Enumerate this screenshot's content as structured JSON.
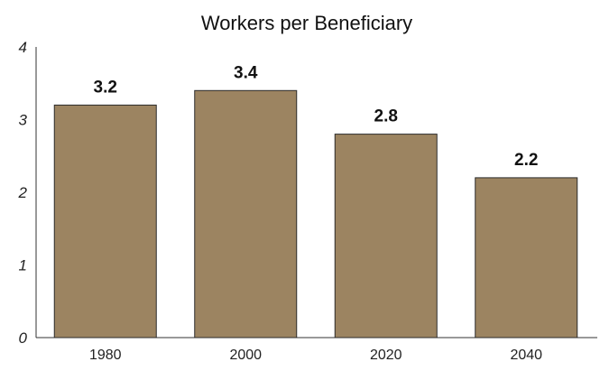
{
  "chart_data": {
    "type": "bar",
    "title": "Workers per Beneficiary",
    "xlabel": "",
    "ylabel": "",
    "categories": [
      "1980",
      "2000",
      "2020",
      "2040"
    ],
    "values": [
      3.2,
      3.4,
      2.8,
      2.2
    ],
    "data_labels": [
      "3.2",
      "3.4",
      "2.8",
      "2.2"
    ],
    "ylim": [
      0,
      4
    ],
    "y_ticks": [
      "0",
      "1",
      "2",
      "3",
      "4"
    ],
    "grid": false,
    "legend": "none",
    "colors": {
      "bar": "#9c8461",
      "bar_outline": "#2b2b2b",
      "text": "#111111"
    }
  }
}
